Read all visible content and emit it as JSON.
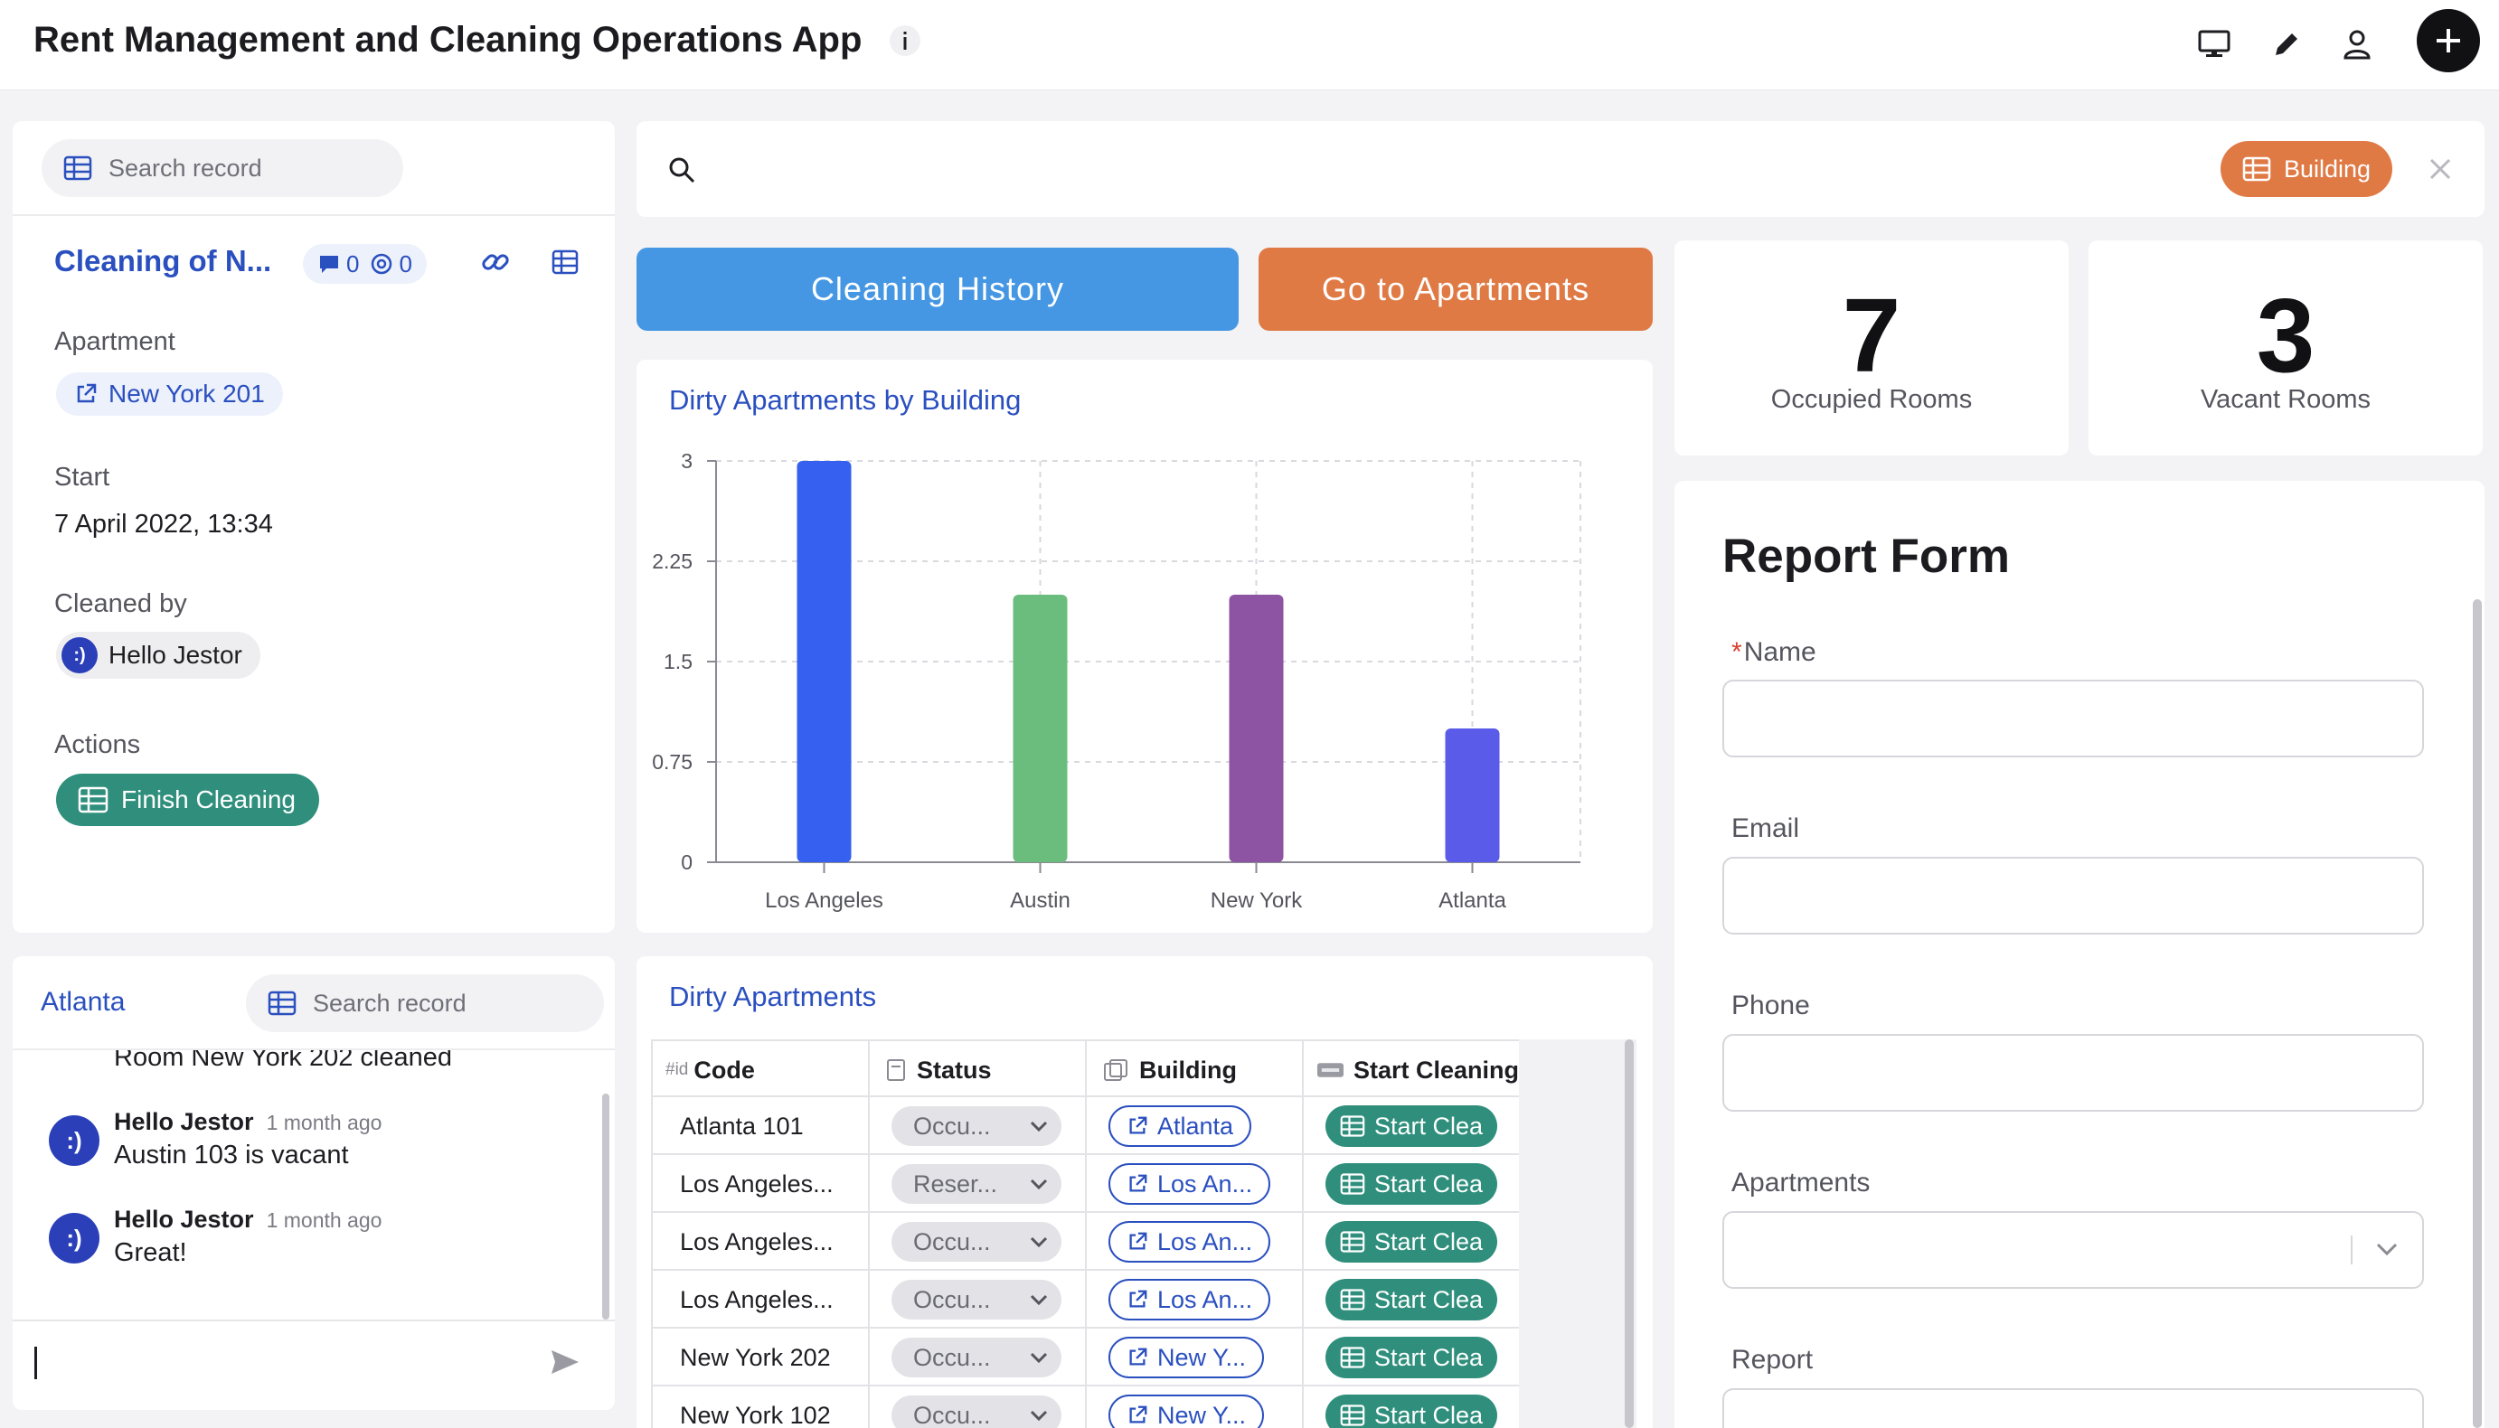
{
  "app": {
    "title": "Rent Management and Cleaning Operations App"
  },
  "left_panel": {
    "search_placeholder": "Search record",
    "record_title": "Cleaning of N...",
    "comment_count": "0",
    "mention_count": "0",
    "fields": {
      "apartment_label": "Apartment",
      "apartment_value": "New York 201",
      "start_label": "Start",
      "start_value": "7 April 2022, 13:34",
      "cleaned_by_label": "Cleaned by",
      "cleaned_by_value": "Hello Jestor",
      "actions_label": "Actions",
      "action_button": "Finish Cleaning"
    }
  },
  "comments_panel": {
    "title": "Atlanta",
    "search_placeholder": "Search record",
    "partial_text": "Room New York 202 cleaned",
    "items": [
      {
        "author": "Hello Jestor",
        "time": "1 month ago",
        "text": "Austin 103 is vacant"
      },
      {
        "author": "Hello Jestor",
        "time": "1 month ago",
        "text": "Great!"
      }
    ],
    "avatar_glyph": ":)"
  },
  "filter": {
    "chip_label": "Building"
  },
  "buttons": {
    "history": "Cleaning History",
    "apartments": "Go to Apartments"
  },
  "colors": {
    "history_button": "#4597e3",
    "apartments_button": "#e07a45"
  },
  "chart_data": {
    "type": "bar",
    "title": "Dirty Apartments by Building",
    "categories": [
      "Los Angeles",
      "Austin",
      "New York",
      "Atlanta"
    ],
    "values": [
      3,
      2,
      2,
      1
    ],
    "colors": [
      "#3560f0",
      "#6bbd7e",
      "#8c54a2",
      "#5a5be8"
    ],
    "yticks": [
      "0",
      "0.75",
      "1.5",
      "2.25",
      "3"
    ],
    "ylim": [
      0,
      3
    ],
    "grid": true,
    "xlabel": "",
    "ylabel": ""
  },
  "stats": {
    "occupied_value": "7",
    "occupied_label": "Occupied Rooms",
    "vacant_value": "3",
    "vacant_label": "Vacant Rooms"
  },
  "report_form": {
    "title": "Report Form",
    "required_mark": "*",
    "name_label": "Name",
    "email_label": "Email",
    "phone_label": "Phone",
    "apartments_label": "Apartments",
    "report_label": "Report"
  },
  "table": {
    "title": "Dirty Apartments",
    "id_tag": "#id",
    "columns": [
      "Code",
      "Status",
      "Building",
      "Start Cleaning"
    ],
    "rows": [
      {
        "code": "Atlanta 101",
        "status": "Occu...",
        "building": "Atlanta",
        "action": "Start Clea"
      },
      {
        "code": "Los Angeles...",
        "status": "Reser...",
        "building": "Los An...",
        "action": "Start Clea"
      },
      {
        "code": "Los Angeles...",
        "status": "Occu...",
        "building": "Los An...",
        "action": "Start Clea"
      },
      {
        "code": "Los Angeles...",
        "status": "Occu...",
        "building": "Los An...",
        "action": "Start Clea"
      },
      {
        "code": "New York 202",
        "status": "Occu...",
        "building": "New Y...",
        "action": "Start Clea"
      },
      {
        "code": "New York 102",
        "status": "Occu...",
        "building": "New Y...",
        "action": "Start Clea"
      }
    ]
  }
}
